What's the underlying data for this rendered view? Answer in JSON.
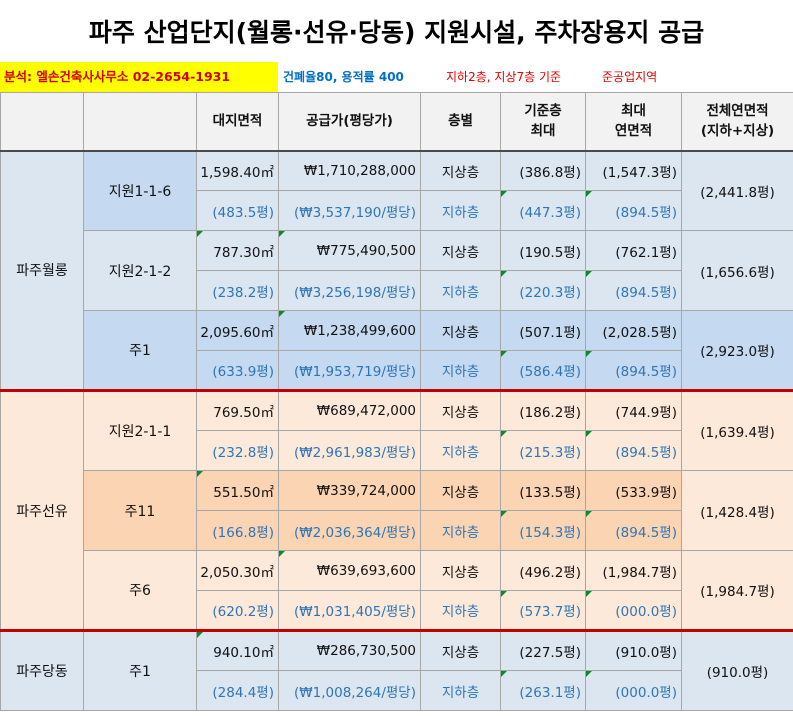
{
  "title": "파주 산업단지(월롱·선유·당동) 지원시설, 주차장용지 공급",
  "info": {
    "contact": "분석: 엘손건축사사무소 02-2654-1931",
    "ratio": "건폐율80, 용적률 400",
    "floors": "지하2층, 지상7층 기준",
    "zone": "준공업지역"
  },
  "headers": {
    "site_area": "대지면적",
    "price": "공급가(평당가)",
    "floor_type": "층별",
    "std_floor_line1": "기준층",
    "std_floor_line2": "최대",
    "max_area_line1": "최대",
    "max_area_line2": "연면적",
    "total_area_line1": "전체연면적",
    "total_area_line2": "(지하+지상)"
  },
  "colors": {
    "red_separator": "#c00000",
    "blue_text": "#2e75b6",
    "triangle": "#0a8a2a"
  },
  "groups": [
    {
      "name": "파주월롱",
      "lots": [
        {
          "name": "지원1-1-6",
          "area_m2": "1,598.40㎡",
          "area_py": "(483.5평)",
          "price": "₩1,710,288,000",
          "unit_price": "(₩3,537,190/평당)",
          "above": "지상층",
          "below": "지하층",
          "std_above": "(386.8평)",
          "std_below": "(447.3평)",
          "max_above": "(1,547.3평)",
          "max_below": "(894.5평)",
          "total": "(2,441.8평)"
        },
        {
          "name": "지원2-1-2",
          "area_m2": "787.30㎡",
          "area_py": "(238.2평)",
          "price": "₩775,490,500",
          "unit_price": "(₩3,256,198/평당)",
          "above": "지상층",
          "below": "지하층",
          "std_above": "(190.5평)",
          "std_below": "(220.3평)",
          "max_above": "(762.1평)",
          "max_below": "(894.5평)",
          "total": "(1,656.6평)"
        },
        {
          "name": "주1",
          "area_m2": "2,095.60㎡",
          "area_py": "(633.9평)",
          "price": "₩1,238,499,600",
          "unit_price": "(₩1,953,719/평당)",
          "above": "지상층",
          "below": "지하층",
          "std_above": "(507.1평)",
          "std_below": "(586.4평)",
          "max_above": "(2,028.5평)",
          "max_below": "(894.5평)",
          "total": "(2,923.0평)"
        }
      ]
    },
    {
      "name": "파주선유",
      "lots": [
        {
          "name": "지원2-1-1",
          "area_m2": "769.50㎡",
          "area_py": "(232.8평)",
          "price": "₩689,472,000",
          "unit_price": "(₩2,961,983/평당)",
          "above": "지상층",
          "below": "지하층",
          "std_above": "(186.2평)",
          "std_below": "(215.3평)",
          "max_above": "(744.9평)",
          "max_below": "(894.5평)",
          "total": "(1,639.4평)"
        },
        {
          "name": "주11",
          "area_m2": "551.50㎡",
          "area_py": "(166.8평)",
          "price": "₩339,724,000",
          "unit_price": "(₩2,036,364/평당)",
          "above": "지상층",
          "below": "지하층",
          "std_above": "(133.5평)",
          "std_below": "(154.3평)",
          "max_above": "(533.9평)",
          "max_below": "(894.5평)",
          "total": "(1,428.4평)"
        },
        {
          "name": "주6",
          "area_m2": "2,050.30㎡",
          "area_py": "(620.2평)",
          "price": "₩639,693,600",
          "unit_price": "(₩1,031,405/평당)",
          "above": "지상층",
          "below": "지하층",
          "std_above": "(496.2평)",
          "std_below": "(573.7평)",
          "max_above": "(1,984.7평)",
          "max_below": "(000.0평)",
          "total": "(1,984.7평)"
        }
      ]
    },
    {
      "name": "파주당동",
      "lots": [
        {
          "name": "주1",
          "area_m2": "940.10㎡",
          "area_py": "(284.4평)",
          "price": "₩286,730,500",
          "unit_price": "(₩1,008,264/평당)",
          "above": "지상층",
          "below": "지하층",
          "std_above": "(227.5평)",
          "std_below": "(263.1평)",
          "max_above": "(910.0평)",
          "max_below": "(000.0평)",
          "total": "(910.0평)"
        }
      ]
    }
  ]
}
